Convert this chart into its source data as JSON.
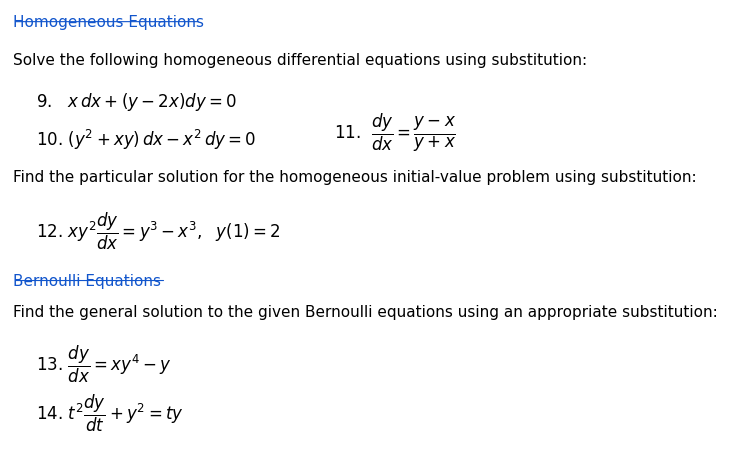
{
  "background_color": "#ffffff",
  "text_color": "#000000",
  "blue_color": "#1155CC",
  "fontsize_body": 11,
  "fontsize_eq": 12,
  "title1": "Homogeneous Equations",
  "subtitle1": "Solve the following homogeneous differential equations using substitution:",
  "subtitle2": "Find the particular solution for the homogeneous initial-value problem using substitution:",
  "title2": "Bernoulli Equations",
  "subtitle3": "Find the general solution to the given Bernoulli equations using an appropriate substitution:"
}
